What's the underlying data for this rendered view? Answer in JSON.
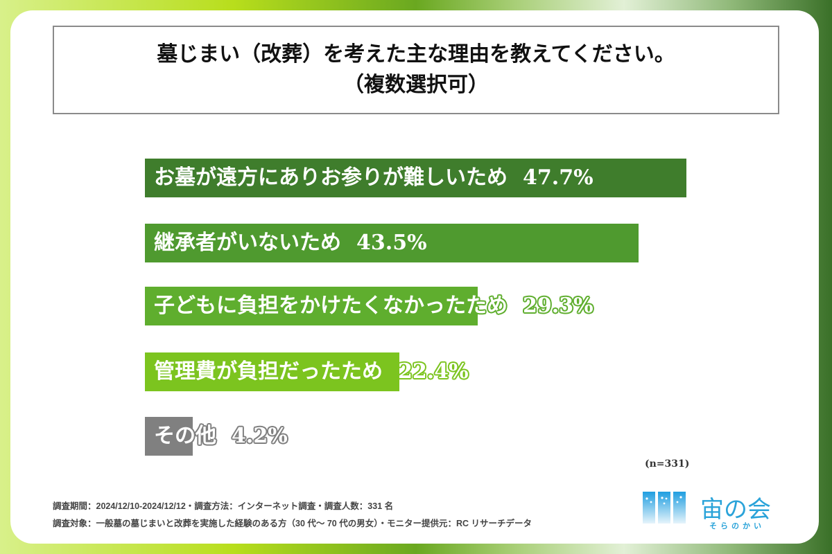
{
  "title_line1": "墓じまい（改葬）を考えた主な理由を教えてください。",
  "title_line2": "（複数選択可）",
  "chart_data": {
    "type": "bar",
    "orientation": "horizontal",
    "categories": [
      "お墓が遠方にありお参りが難しいため",
      "継承者がいないため",
      "子どもに負担をかけたくなかったため",
      "管理費が負担だったため",
      "その他"
    ],
    "values": [
      47.7,
      43.5,
      29.3,
      22.4,
      4.2
    ],
    "value_labels": [
      "47.7%",
      "43.5%",
      "29.3%",
      "22.4%",
      "4.2%"
    ],
    "colors": [
      "#3f7d2c",
      "#4f9a2f",
      "#5fae2e",
      "#7cc41f",
      "#808080"
    ],
    "unit": "%",
    "grid": false
  },
  "sample_note": "(n=331)",
  "footer": {
    "line1": "調査期間：2024/12/10-2024/12/12・調査方法：インターネット調査・調査人数：331 名",
    "line2": "調査対象：一般墓の墓じまいと改葬を実施した経験のある方（30 代～ 70 代の男女）・モニター提供元：RC リサーチデータ"
  },
  "logo": {
    "name": "宙の会",
    "reading": "そらのかい",
    "color": "#2aa3d9"
  }
}
